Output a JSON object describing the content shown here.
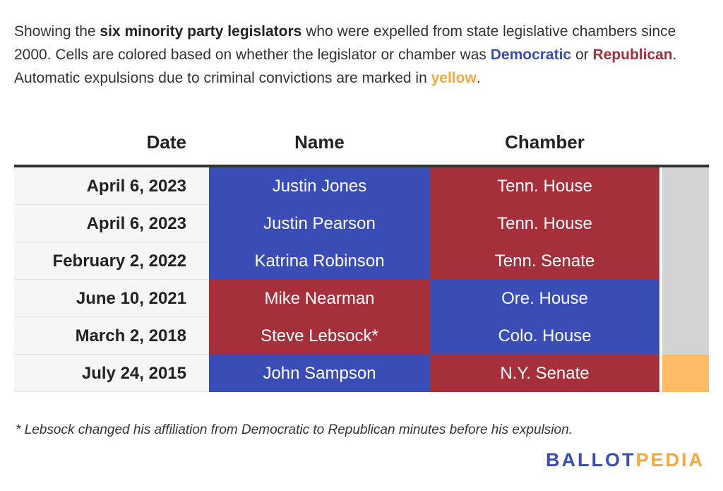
{
  "intro": {
    "p1": "Showing the ",
    "bold": "six minority party legislators",
    "p2": " who were expelled from state legislative chambers since 2000. Cells are colored based on whether the legislator or chamber was ",
    "dem": "Democratic",
    "p3": " or ",
    "rep": "Republican",
    "p4": ". Automatic expulsions due to criminal convictions are marked in ",
    "yel": "yellow",
    "p5": "."
  },
  "colors": {
    "democratic": "#3a4db6",
    "republican": "#a5303c",
    "automatic": "#ffbb66",
    "not_automatic": "#d3d3d3"
  },
  "chart_data": {
    "type": "table",
    "columns": [
      "Date",
      "Name",
      "Chamber"
    ],
    "rows": [
      {
        "date": "April 6, 2023",
        "name": "Justin Jones",
        "name_party": "democratic",
        "chamber": "Tenn. House",
        "chamber_party": "republican",
        "automatic": false
      },
      {
        "date": "April 6, 2023",
        "name": "Justin Pearson",
        "name_party": "democratic",
        "chamber": "Tenn. House",
        "chamber_party": "republican",
        "automatic": false
      },
      {
        "date": "February 2, 2022",
        "name": "Katrina Robinson",
        "name_party": "democratic",
        "chamber": "Tenn. Senate",
        "chamber_party": "republican",
        "automatic": false
      },
      {
        "date": "June 10, 2021",
        "name": "Mike Nearman",
        "name_party": "republican",
        "chamber": "Ore. House",
        "chamber_party": "democratic",
        "automatic": false
      },
      {
        "date": "March 2, 2018",
        "name": "Steve Lebsock*",
        "name_party": "republican",
        "chamber": "Colo. House",
        "chamber_party": "democratic",
        "automatic": false
      },
      {
        "date": "July 24, 2015",
        "name": "John Sampson",
        "name_party": "democratic",
        "chamber": "N.Y. Senate",
        "chamber_party": "republican",
        "automatic": true
      }
    ]
  },
  "footnote": "* Lebsock changed his affiliation from Democratic to Republican minutes before his expulsion.",
  "logo": {
    "part1": "BALLOT",
    "part2": "PEDIA"
  }
}
